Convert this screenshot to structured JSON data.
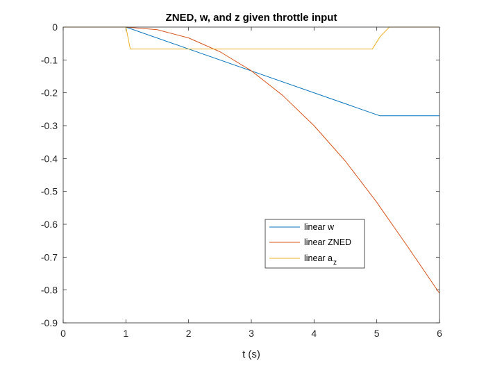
{
  "chart_data": {
    "type": "line",
    "title": "ZNED, w, and z given throttle input",
    "xlabel": "t (s)",
    "ylabel": "",
    "xlim": [
      0,
      6
    ],
    "ylim": [
      -0.9,
      0
    ],
    "xticks": [
      0,
      1,
      2,
      3,
      4,
      5,
      6
    ],
    "xtick_labels": [
      "0",
      "1",
      "2",
      "3",
      "4",
      "5",
      "6"
    ],
    "yticks": [
      0,
      -0.1,
      -0.2,
      -0.3,
      -0.4,
      -0.5,
      -0.6,
      -0.7,
      -0.8,
      -0.9
    ],
    "ytick_labels": [
      "0",
      "-0.1",
      "-0.2",
      "-0.3",
      "-0.4",
      "-0.5",
      "-0.6",
      "-0.7",
      "-0.8",
      "-0.9"
    ],
    "grid": false,
    "legend_position": "lower-right-inside",
    "series": [
      {
        "name": "linear w",
        "color": "#0072BD",
        "x": [
          0,
          1.0,
          5.05,
          5.2,
          6.0
        ],
        "y": [
          0,
          0,
          -0.27,
          -0.27,
          -0.27
        ]
      },
      {
        "name": "linear ZNED",
        "color": "#D95319",
        "x": [
          0,
          1.0,
          1.5,
          2.0,
          2.5,
          3.0,
          3.5,
          4.0,
          4.5,
          5.0,
          5.05,
          5.5,
          6.0
        ],
        "y": [
          0,
          0,
          -0.008,
          -0.033,
          -0.075,
          -0.133,
          -0.208,
          -0.3,
          -0.408,
          -0.533,
          -0.547,
          -0.67,
          -0.81
        ]
      },
      {
        "name": "linear a",
        "name_subscript": "z",
        "color": "#EDB120",
        "x": [
          0,
          1.0,
          1.07,
          4.93,
          5.05,
          5.1,
          5.2,
          6.0
        ],
        "y": [
          0,
          0,
          -0.0667,
          -0.0667,
          -0.03,
          -0.02,
          0,
          0
        ]
      }
    ]
  },
  "legend": {
    "items": [
      {
        "label": "linear w",
        "color": "#0072BD"
      },
      {
        "label": "linear ZNED",
        "color": "#D95319"
      },
      {
        "label": "linear a",
        "subscript": "z",
        "color": "#EDB120"
      }
    ]
  }
}
